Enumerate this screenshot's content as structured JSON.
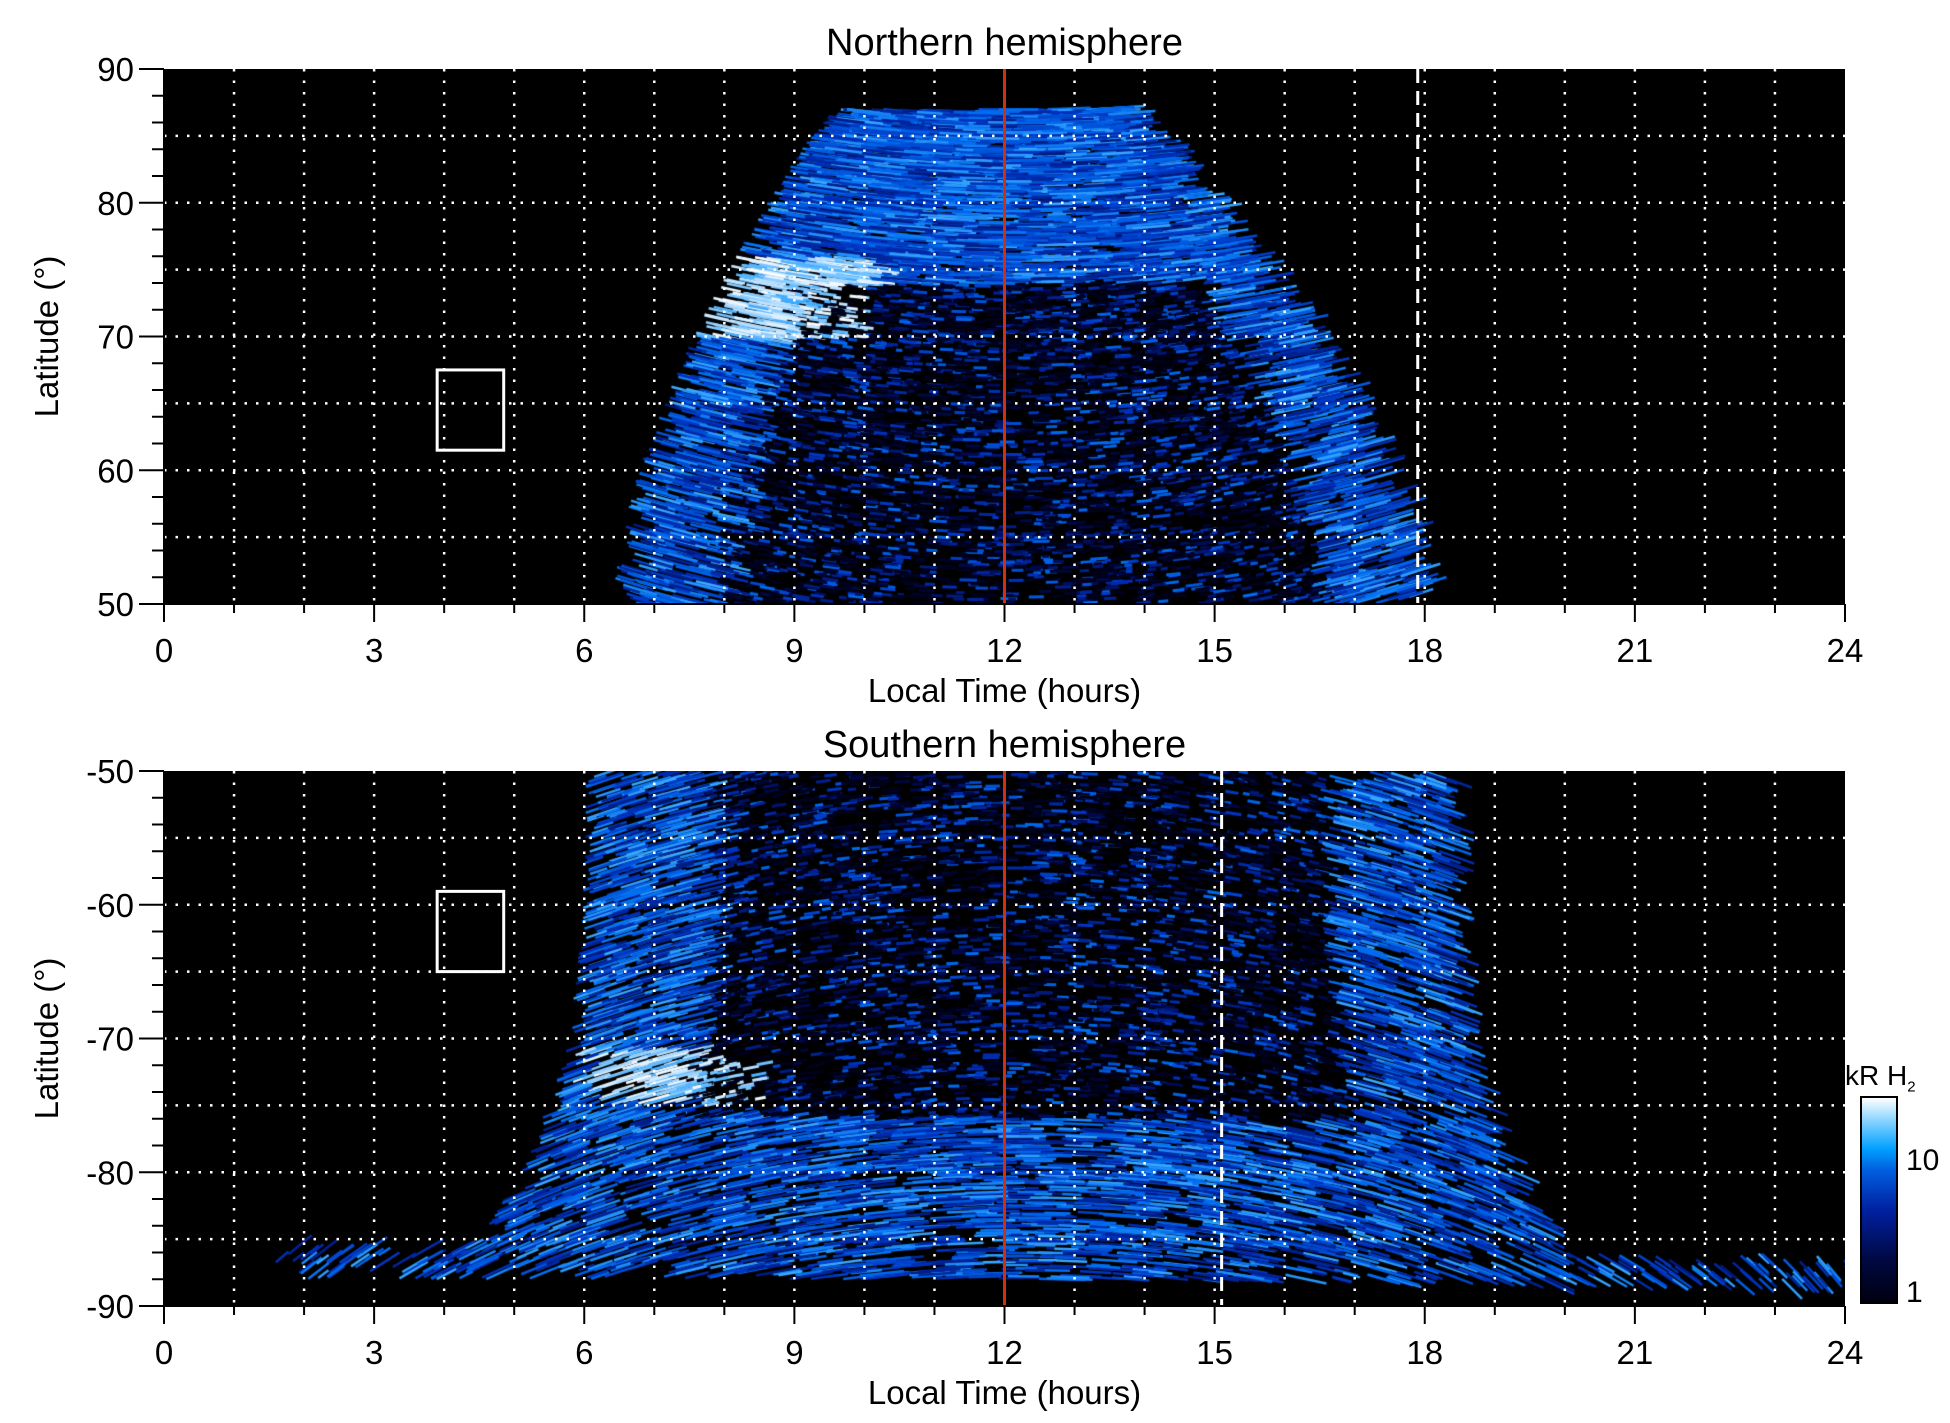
{
  "chart_data": [
    {
      "type": "heatmap",
      "title": "Northern hemisphere",
      "xlabel": "Local Time (hours)",
      "ylabel": "Latitude (°)",
      "xlim": [
        0,
        24
      ],
      "ylim": [
        50,
        90
      ],
      "xticks": [
        "0",
        "3",
        "6",
        "9",
        "12",
        "15",
        "18",
        "21",
        "24"
      ],
      "yticks": [
        "50",
        "60",
        "70",
        "80",
        "90"
      ],
      "grid": true,
      "vertical_lines": [
        {
          "x": 12,
          "style": "solid",
          "color": "#d03010"
        },
        {
          "x": 17.9,
          "style": "dashed",
          "color": "#ffffff"
        }
      ],
      "box": {
        "x": [
          3.9,
          4.85
        ],
        "y": [
          61.5,
          67.5
        ],
        "color": "#ffffff"
      },
      "emission_extent": {
        "lt_at_50": [
          6.4,
          17.8
        ],
        "lt_at_top": [
          9.5,
          13.5
        ],
        "top_latitude": 87
      },
      "bright_arc": {
        "lt": [
          7.5,
          10
        ],
        "lat": [
          70,
          76
        ]
      }
    },
    {
      "type": "heatmap",
      "title": "Southern hemisphere",
      "xlabel": "Local Time (hours)",
      "ylabel": "Latitude (°)",
      "xlim": [
        0,
        24
      ],
      "ylim": [
        -90,
        -50
      ],
      "xticks": [
        "0",
        "3",
        "6",
        "9",
        "12",
        "15",
        "18",
        "21",
        "24"
      ],
      "yticks": [
        "-90",
        "-80",
        "-70",
        "-60",
        "-50"
      ],
      "grid": true,
      "vertical_lines": [
        {
          "x": 12,
          "style": "solid",
          "color": "#d03010"
        },
        {
          "x": 15.1,
          "style": "dashed",
          "color": "#ffffff"
        }
      ],
      "box": {
        "x": [
          3.9,
          4.85
        ],
        "y": [
          -65,
          -59
        ],
        "color": "#ffffff"
      },
      "emission_extent": {
        "lt_at_top": [
          6,
          18.2
        ],
        "lt_at_85": [
          4.5,
          19.8
        ]
      },
      "bright_arc": {
        "lt": [
          5.8,
          8.5
        ],
        "lat": [
          -75,
          -71
        ]
      }
    }
  ],
  "colorbar": {
    "label": "kR H",
    "label_subscript": "2",
    "scale": "log",
    "range": [
      1,
      30
    ],
    "ticks": [
      "1",
      "10"
    ],
    "colormap": [
      "#000010",
      "#0020a0",
      "#00a0ff",
      "#ffffff"
    ]
  }
}
